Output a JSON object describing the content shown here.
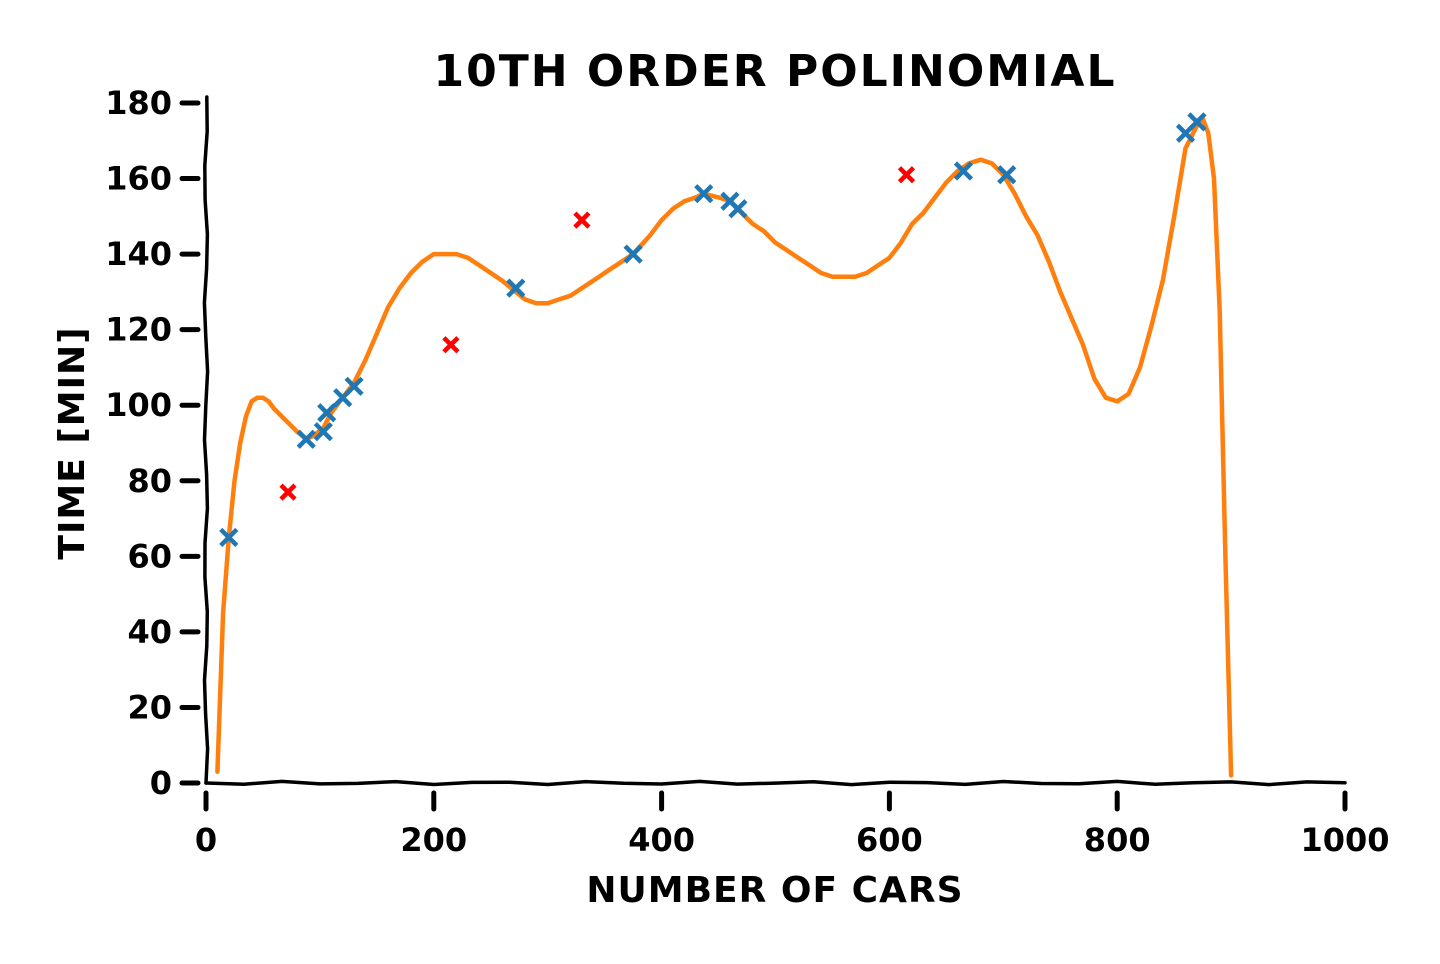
{
  "chart_data": {
    "type": "scatter",
    "title": "10TH ORDER POLINOMIAL",
    "xlabel": "NUMBER OF CARS",
    "ylabel": "TIME [MIN]",
    "xlim": [
      0,
      1000
    ],
    "ylim": [
      0,
      180
    ],
    "x_ticks": [
      0,
      200,
      400,
      600,
      800,
      1000
    ],
    "y_ticks": [
      0,
      20,
      40,
      60,
      80,
      100,
      120,
      140,
      160,
      180
    ],
    "grid": false,
    "legend": "none",
    "series": [
      {
        "kind": "scatter",
        "marker": "x",
        "color": "#1f77b4",
        "points": [
          [
            20,
            65
          ],
          [
            88,
            91
          ],
          [
            103,
            93
          ],
          [
            106,
            98
          ],
          [
            120,
            102
          ],
          [
            130,
            105
          ],
          [
            272,
            131
          ],
          [
            375,
            140
          ],
          [
            437,
            156
          ],
          [
            460,
            154
          ],
          [
            467,
            152
          ],
          [
            665,
            162
          ],
          [
            703,
            161
          ],
          [
            860,
            172
          ],
          [
            870,
            175
          ]
        ]
      },
      {
        "kind": "scatter",
        "marker": "x",
        "color": "#ff0000",
        "points": [
          [
            72,
            77
          ],
          [
            215,
            116
          ],
          [
            330,
            149
          ],
          [
            615,
            161
          ]
        ]
      },
      {
        "kind": "line",
        "color": "#ff7f0e",
        "points": [
          [
            10,
            3
          ],
          [
            12,
            20
          ],
          [
            15,
            45
          ],
          [
            20,
            65
          ],
          [
            25,
            80
          ],
          [
            30,
            90
          ],
          [
            35,
            97
          ],
          [
            40,
            101
          ],
          [
            45,
            102
          ],
          [
            50,
            102
          ],
          [
            55,
            101
          ],
          [
            60,
            99
          ],
          [
            70,
            96
          ],
          [
            80,
            93
          ],
          [
            88,
            91
          ],
          [
            95,
            92
          ],
          [
            103,
            94
          ],
          [
            110,
            98
          ],
          [
            120,
            102
          ],
          [
            130,
            106
          ],
          [
            140,
            112
          ],
          [
            150,
            119
          ],
          [
            160,
            126
          ],
          [
            170,
            131
          ],
          [
            180,
            135
          ],
          [
            190,
            138
          ],
          [
            200,
            140
          ],
          [
            210,
            140
          ],
          [
            220,
            140
          ],
          [
            230,
            139
          ],
          [
            240,
            137
          ],
          [
            250,
            135
          ],
          [
            260,
            133
          ],
          [
            272,
            130
          ],
          [
            280,
            128
          ],
          [
            290,
            127
          ],
          [
            300,
            127
          ],
          [
            310,
            128
          ],
          [
            320,
            129
          ],
          [
            330,
            131
          ],
          [
            340,
            133
          ],
          [
            350,
            135
          ],
          [
            360,
            137
          ],
          [
            375,
            140
          ],
          [
            390,
            145
          ],
          [
            400,
            149
          ],
          [
            410,
            152
          ],
          [
            420,
            154
          ],
          [
            430,
            155
          ],
          [
            437,
            156
          ],
          [
            450,
            155
          ],
          [
            460,
            154
          ],
          [
            470,
            151
          ],
          [
            480,
            148
          ],
          [
            490,
            146
          ],
          [
            500,
            143
          ],
          [
            510,
            141
          ],
          [
            520,
            139
          ],
          [
            530,
            137
          ],
          [
            540,
            135
          ],
          [
            550,
            134
          ],
          [
            560,
            134
          ],
          [
            570,
            134
          ],
          [
            580,
            135
          ],
          [
            590,
            137
          ],
          [
            600,
            139
          ],
          [
            610,
            143
          ],
          [
            620,
            148
          ],
          [
            630,
            151
          ],
          [
            640,
            155
          ],
          [
            650,
            159
          ],
          [
            660,
            162
          ],
          [
            670,
            164
          ],
          [
            680,
            165
          ],
          [
            690,
            164
          ],
          [
            700,
            161
          ],
          [
            710,
            156
          ],
          [
            720,
            150
          ],
          [
            730,
            145
          ],
          [
            740,
            138
          ],
          [
            750,
            130
          ],
          [
            760,
            123
          ],
          [
            770,
            116
          ],
          [
            780,
            107
          ],
          [
            790,
            102
          ],
          [
            800,
            101
          ],
          [
            810,
            103
          ],
          [
            820,
            110
          ],
          [
            830,
            121
          ],
          [
            840,
            133
          ],
          [
            850,
            150
          ],
          [
            860,
            168
          ],
          [
            870,
            174
          ],
          [
            875,
            176
          ],
          [
            880,
            172
          ],
          [
            885,
            160
          ],
          [
            890,
            125
          ],
          [
            895,
            60
          ],
          [
            900,
            2
          ]
        ]
      }
    ]
  }
}
